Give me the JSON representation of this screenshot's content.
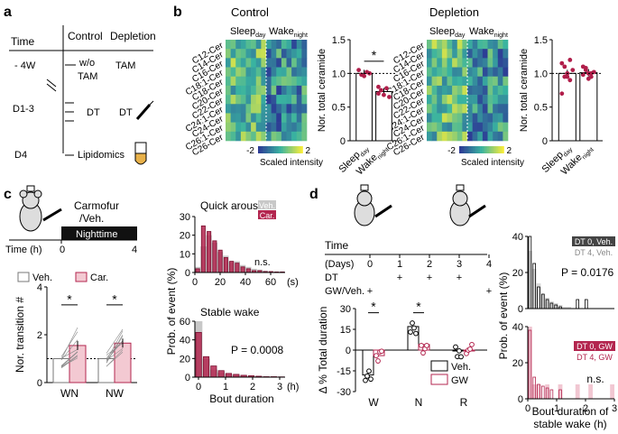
{
  "colors": {
    "control_bar": "#ffffff",
    "depletion_dot": "#b01e4a",
    "carmofur": "#b3264f",
    "carmofur_light": "#f3c9d2",
    "veh_gray": "#c8c8c8",
    "heat_low": "#2c3a95",
    "heat_mid": "#39b3a0",
    "heat_high": "#f6ec3a"
  },
  "panel_a": {
    "label": "a",
    "time_header": "Time",
    "control_header": "Control",
    "depletion_header": "Depletion",
    "rows": [
      {
        "time": "- 4W",
        "control": "w/o TAM",
        "depletion": "TAM"
      },
      {
        "time": "D1-3",
        "control": "DT",
        "depletion": "DT"
      },
      {
        "time": "D4",
        "control": "Lipidomics",
        "depletion": ""
      }
    ]
  },
  "panel_b": {
    "label": "b",
    "control_title": "Control",
    "depletion_title": "Depletion",
    "col_sleep": "Sleep",
    "col_sleep_sub": "day",
    "col_wake": "Wake",
    "col_wake_sub": "night",
    "row_labels": [
      "C12-Cer",
      "C14-Cer",
      "C16-Cer",
      "C18:1-Cer",
      "C18-Cer",
      "C20-Cer",
      "C22-Cer",
      "C24:1-Cer",
      "C24-Cer",
      "C26:1-Cer",
      "C26-Cer"
    ],
    "colorbar_min": "-2",
    "colorbar_max": "2",
    "colorbar_label": "Scaled intensity",
    "ylabel": "Nor. total ceramide",
    "yticks": [
      "0",
      "0.5",
      "1.0",
      "1.5"
    ],
    "xcat_sleep": "Sleep",
    "xcat_sleep_sub": "day",
    "xcat_wake": "Wake",
    "xcat_wake_sub": "night",
    "control_sig": "*",
    "control_means": [
      1.0,
      0.73
    ],
    "depletion_means": [
      1.0,
      1.01
    ]
  },
  "panel_c": {
    "label": "c",
    "drug_label": "Carmofur",
    "drug_label2": "/Veh.",
    "nighttime": "Nighttime",
    "time_axis": "Time (h)",
    "t0": "0",
    "t4": "4",
    "legend_veh": "Veh.",
    "legend_car": "Car.",
    "ylabel": "Nor. transition #",
    "yticks": [
      "0",
      "2",
      "4"
    ],
    "categories": [
      "WN",
      "NW"
    ],
    "veh_means": [
      1.0,
      1.0
    ],
    "car_means": [
      1.55,
      1.65
    ],
    "sig": [
      "*",
      "*"
    ],
    "hist_ylabel": "Prob. of event (%)",
    "hist_xlabel": "Bout duration",
    "quick_title": "Quick arousal",
    "quick_yticks": [
      "0",
      "10",
      "20",
      "30"
    ],
    "quick_xticks": [
      "0",
      "20",
      "40",
      "60"
    ],
    "quick_unit": "(s)",
    "quick_stat": "n.s.",
    "quick_veh": [
      3,
      14,
      20,
      16,
      11,
      9,
      6,
      6,
      4,
      3,
      2,
      1.5,
      1,
      0.5,
      0.5,
      0.5
    ],
    "quick_car": [
      2,
      25,
      22,
      17,
      12,
      8,
      6,
      5,
      3,
      2,
      1,
      1,
      0.5,
      0.5,
      0.3,
      0.3
    ],
    "stable_title": "Stable wake",
    "stable_yticks": [
      "0",
      "20",
      "40",
      "60"
    ],
    "stable_xticks": [
      "0",
      "1",
      "2",
      "3"
    ],
    "stable_unit": "(h)",
    "stable_stat": "P = 0.0008",
    "stable_veh": [
      60,
      20,
      8,
      5,
      3,
      2,
      1.5,
      1,
      0.5,
      0.5,
      0.3,
      0.3
    ],
    "stable_car": [
      48,
      22,
      12,
      7,
      4,
      3,
      2,
      1.5,
      1,
      0.5,
      0.5,
      0.3
    ]
  },
  "panel_d": {
    "label": "d",
    "time_label": "Time",
    "days_label": "(Days)",
    "days": [
      "0",
      "1",
      "2",
      "3",
      "4"
    ],
    "dt_label": "DT",
    "dt_marks": [
      "",
      "+",
      "+",
      "+",
      ""
    ],
    "gw_label": "GW/Veh.",
    "gw_marks": [
      "+",
      "",
      "",
      "",
      "+"
    ],
    "ylabel": "Δ % Total duration",
    "yticks": [
      "-30",
      "-15",
      "0",
      "15",
      "30"
    ],
    "categories": [
      "W",
      "N",
      "R"
    ],
    "veh_means": [
      -18,
      17,
      0
    ],
    "gw_means": [
      -4,
      4,
      0
    ],
    "sig": [
      "*",
      "*",
      ""
    ],
    "legend_veh": "Veh.",
    "legend_gw": "GW",
    "hist_ylabel": "Prob. of event (%)",
    "hist_xlabel": "Bout duration of",
    "hist_xlabel2": "stable wake (h)",
    "top_legend1": "DT 0, Veh.",
    "top_legend2": "DT 4, Veh.",
    "top_stat": "P = 0.0176",
    "bottom_legend1": "DT 0, GW",
    "bottom_legend2": "DT 4, GW",
    "bottom_stat": "n.s.",
    "top_yticks": [
      "0",
      "20",
      "40"
    ],
    "bottom_yticks": [
      "0",
      "20",
      "40"
    ],
    "xticks": [
      "0",
      "1",
      "2",
      "3"
    ],
    "top_dt0": [
      42,
      25,
      12,
      8,
      5,
      3,
      2,
      1,
      0,
      0,
      0,
      5,
      0,
      5,
      0,
      0,
      0,
      0,
      0,
      0
    ],
    "top_dt4": [
      32,
      22,
      14,
      8,
      6,
      4,
      3,
      2,
      1,
      1,
      0,
      0,
      0,
      0,
      0,
      0,
      0,
      0,
      0,
      0
    ],
    "bottom_dt0": [
      38,
      12,
      8,
      7,
      6,
      5,
      0,
      5,
      0,
      0,
      0,
      0,
      0,
      0,
      0,
      0,
      0,
      0,
      0,
      0
    ],
    "bottom_dt4": [
      40,
      8,
      8,
      0,
      8,
      0,
      0,
      8,
      0,
      0,
      0,
      8,
      0,
      0,
      8,
      0,
      0,
      0,
      0,
      8
    ]
  }
}
